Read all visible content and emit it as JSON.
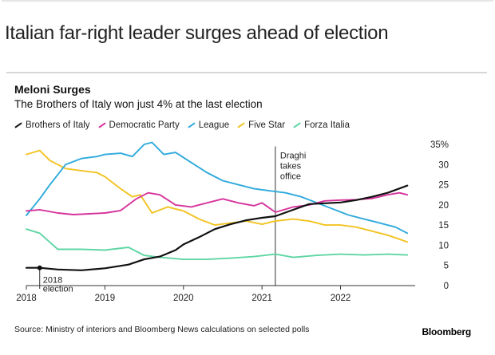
{
  "headline": "Italian far-right leader surges ahead of election",
  "source": "Source: Ministry of interiors and Bloomberg News calculations on selected polls",
  "brand": "Bloomberg",
  "chart_data": {
    "type": "line",
    "title": "Meloni Surges",
    "subtitle": "The Brothers of Italy won just 4% at the last election",
    "xlabel": "",
    "ylabel": "",
    "xlim": [
      2018.0,
      2022.95
    ],
    "ylim": [
      0,
      35
    ],
    "y_ticks": [
      0,
      5,
      10,
      15,
      20,
      25,
      30,
      35
    ],
    "y_tick_labels": [
      "0",
      "5",
      "10",
      "15",
      "20",
      "25",
      "30",
      "35%"
    ],
    "x_ticks": [
      2018,
      2019,
      2020,
      2021,
      2022
    ],
    "x_tick_labels": [
      "2018",
      "2019",
      "2020",
      "2021",
      "2022"
    ],
    "grid": false,
    "legend_position": "top",
    "annotations": [
      {
        "text": "Draghi takes office",
        "lines": [
          "Draghi",
          "takes",
          "office"
        ],
        "x": 2021.17,
        "style": "vertical-line"
      },
      {
        "text": "2018 election",
        "lines": [
          "2018",
          "election"
        ],
        "x": 2018.17,
        "y": 4.4,
        "style": "marker"
      }
    ],
    "series": [
      {
        "name": "Brothers of Italy",
        "color": "#111111",
        "x": [
          2018.0,
          2018.17,
          2018.4,
          2018.7,
          2019.0,
          2019.3,
          2019.5,
          2019.7,
          2019.9,
          2020.0,
          2020.2,
          2020.4,
          2020.6,
          2020.8,
          2021.0,
          2021.17,
          2021.4,
          2021.6,
          2021.8,
          2022.0,
          2022.2,
          2022.4,
          2022.6,
          2022.85
        ],
        "values": [
          4.4,
          4.4,
          4.0,
          3.8,
          4.3,
          5.2,
          6.5,
          7.2,
          8.8,
          10.2,
          12.0,
          14.0,
          15.2,
          16.2,
          16.8,
          17.2,
          18.8,
          20.2,
          20.4,
          20.6,
          21.2,
          22.0,
          23.0,
          24.8
        ]
      },
      {
        "name": "Democratic Party",
        "color": "#d6339c",
        "x": [
          2018.0,
          2018.17,
          2018.4,
          2018.6,
          2018.8,
          2019.0,
          2019.2,
          2019.4,
          2019.55,
          2019.7,
          2019.9,
          2020.1,
          2020.3,
          2020.5,
          2020.7,
          2020.9,
          2021.0,
          2021.17,
          2021.4,
          2021.6,
          2021.8,
          2022.0,
          2022.2,
          2022.4,
          2022.6,
          2022.75,
          2022.85
        ],
        "values": [
          18.5,
          18.8,
          18.0,
          17.6,
          17.8,
          18.0,
          18.6,
          21.5,
          23.0,
          22.5,
          20.0,
          19.5,
          20.5,
          21.5,
          20.5,
          19.8,
          20.5,
          18.2,
          19.5,
          20.0,
          21.0,
          21.2,
          21.3,
          21.6,
          22.5,
          23.0,
          22.5
        ]
      },
      {
        "name": "League",
        "color": "#2eaadc",
        "x": [
          2018.0,
          2018.17,
          2018.3,
          2018.5,
          2018.7,
          2018.9,
          2019.0,
          2019.2,
          2019.35,
          2019.5,
          2019.6,
          2019.75,
          2019.9,
          2020.1,
          2020.3,
          2020.5,
          2020.7,
          2020.9,
          2021.1,
          2021.3,
          2021.5,
          2021.7,
          2021.9,
          2022.1,
          2022.3,
          2022.5,
          2022.7,
          2022.85
        ],
        "values": [
          17.4,
          21.5,
          25.0,
          30.0,
          31.5,
          32.0,
          32.5,
          32.8,
          32.0,
          35.0,
          35.5,
          32.5,
          33.0,
          30.5,
          28.0,
          26.0,
          25.0,
          24.0,
          23.5,
          23.0,
          22.0,
          20.5,
          19.0,
          17.5,
          16.5,
          15.5,
          14.5,
          13.0
        ]
      },
      {
        "name": "Five Star",
        "color": "#f2c321",
        "x": [
          2018.0,
          2018.17,
          2018.3,
          2018.5,
          2018.7,
          2018.9,
          2019.0,
          2019.2,
          2019.35,
          2019.45,
          2019.6,
          2019.8,
          2020.0,
          2020.2,
          2020.4,
          2020.6,
          2020.8,
          2021.0,
          2021.17,
          2021.4,
          2021.6,
          2021.8,
          2022.0,
          2022.2,
          2022.4,
          2022.6,
          2022.75,
          2022.85
        ],
        "values": [
          32.5,
          33.5,
          31.0,
          29.0,
          28.5,
          28.0,
          27.0,
          24.0,
          22.0,
          22.5,
          18.0,
          19.5,
          18.5,
          16.5,
          15.0,
          15.5,
          16.0,
          15.2,
          16.0,
          16.5,
          16.0,
          15.0,
          15.0,
          14.5,
          13.5,
          12.5,
          11.5,
          10.8
        ]
      },
      {
        "name": "Forza Italia",
        "color": "#5fd6a4",
        "x": [
          2018.0,
          2018.17,
          2018.4,
          2018.7,
          2019.0,
          2019.3,
          2019.5,
          2019.7,
          2020.0,
          2020.3,
          2020.6,
          2020.9,
          2021.17,
          2021.4,
          2021.7,
          2022.0,
          2022.3,
          2022.6,
          2022.85
        ],
        "values": [
          14.0,
          13.0,
          9.0,
          9.0,
          8.8,
          9.5,
          7.5,
          7.0,
          6.5,
          6.5,
          6.8,
          7.2,
          7.8,
          7.0,
          7.5,
          7.8,
          7.6,
          7.8,
          7.6
        ]
      }
    ]
  }
}
